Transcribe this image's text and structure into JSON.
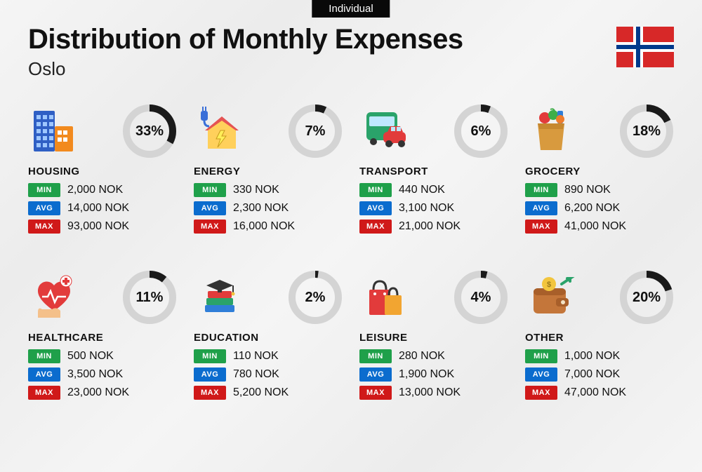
{
  "tab_label": "Individual",
  "title": "Distribution of Monthly Expenses",
  "subtitle": "Oslo",
  "flag": {
    "bg": "#d72828",
    "cross_outer": "#ffffff",
    "cross_inner": "#003a8c"
  },
  "donut": {
    "track_color": "#d4d4d4",
    "fill_color": "#1a1a1a",
    "stroke_width": 10,
    "radius": 33,
    "size": 78
  },
  "badges": {
    "min": {
      "label": "MIN",
      "bg": "#1fa04a"
    },
    "avg": {
      "label": "AVG",
      "bg": "#0b6cce"
    },
    "max": {
      "label": "MAX",
      "bg": "#d01919"
    }
  },
  "currency_suffix": " NOK",
  "categories": [
    {
      "name": "HOUSING",
      "percent": 33,
      "min": "2,000",
      "avg": "14,000",
      "max": "93,000",
      "icon": "housing"
    },
    {
      "name": "ENERGY",
      "percent": 7,
      "min": "330",
      "avg": "2,300",
      "max": "16,000",
      "icon": "energy"
    },
    {
      "name": "TRANSPORT",
      "percent": 6,
      "min": "440",
      "avg": "3,100",
      "max": "21,000",
      "icon": "transport"
    },
    {
      "name": "GROCERY",
      "percent": 18,
      "min": "890",
      "avg": "6,200",
      "max": "41,000",
      "icon": "grocery"
    },
    {
      "name": "HEALTHCARE",
      "percent": 11,
      "min": "500",
      "avg": "3,500",
      "max": "23,000",
      "icon": "healthcare"
    },
    {
      "name": "EDUCATION",
      "percent": 2,
      "min": "110",
      "avg": "780",
      "max": "5,200",
      "icon": "education"
    },
    {
      "name": "LEISURE",
      "percent": 4,
      "min": "280",
      "avg": "1,900",
      "max": "13,000",
      "icon": "leisure"
    },
    {
      "name": "OTHER",
      "percent": 20,
      "min": "1,000",
      "avg": "7,000",
      "max": "47,000",
      "icon": "other"
    }
  ],
  "icon_colors": {
    "housing_tall": "#2f5fc4",
    "housing_short": "#f28a1e",
    "housing_window": "#9ec7ff",
    "energy_house": "#ffd05b",
    "energy_roof": "#e55353",
    "energy_bolt": "#ffee58",
    "energy_plug": "#3a6fd8",
    "transport_bus": "#2aa36a",
    "transport_bus_window": "#bfe8ff",
    "transport_car": "#e23b3b",
    "transport_wheel": "#333",
    "grocery_bag": "#d89a3e",
    "grocery_green": "#3fae49",
    "grocery_orange": "#f07c2b",
    "grocery_red": "#e23b3b",
    "grocery_blue": "#2f7ed8",
    "healthcare_heart": "#e23b3b",
    "healthcare_hand": "#f4c08a",
    "healthcare_plus_bg": "#ffffff",
    "healthcare_plus": "#e23b3b",
    "healthcare_line": "#ffffff",
    "education_cap": "#333333",
    "education_book1": "#e23b3b",
    "education_book2": "#2aa36a",
    "education_book3": "#2f7ed8",
    "leisure_bag1": "#e23b3b",
    "leisure_bag2": "#f2a531",
    "leisure_handle": "#333",
    "other_wallet": "#c4763a",
    "other_wallet_top": "#a85f2a",
    "other_coin": "#f2c53d",
    "other_arrow": "#2aa36a"
  }
}
